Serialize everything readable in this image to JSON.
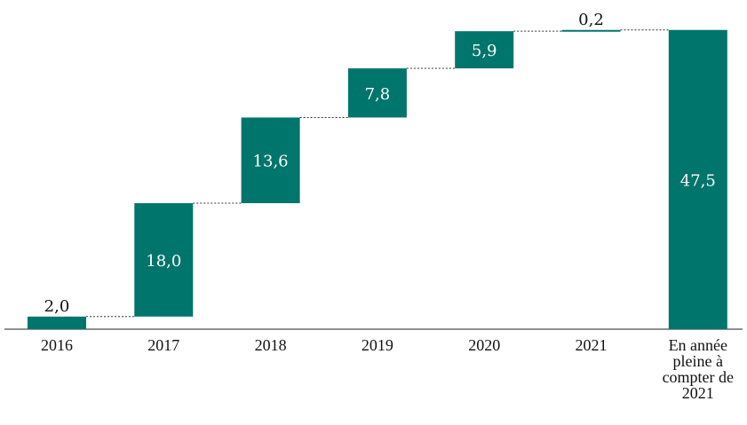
{
  "chart_data": {
    "type": "waterfall",
    "categories": [
      "2016",
      "2017",
      "2018",
      "2019",
      "2020",
      "2021",
      "En année pleine à compter de 2021"
    ],
    "values": [
      2.0,
      18.0,
      13.6,
      7.8,
      5.9,
      0.2,
      47.5
    ],
    "value_labels": [
      "2,0",
      "18,0",
      "13,6",
      "7,8",
      "5,9",
      "0,2",
      "47,5"
    ],
    "is_total": [
      false,
      false,
      false,
      false,
      false,
      false,
      true
    ],
    "connectors": "dotted",
    "bar_color": "#00756c",
    "label_color_inside": "#ffffff",
    "label_color_outside": "#111111",
    "grid": false,
    "title": "",
    "xlabel": "",
    "ylabel": ""
  }
}
